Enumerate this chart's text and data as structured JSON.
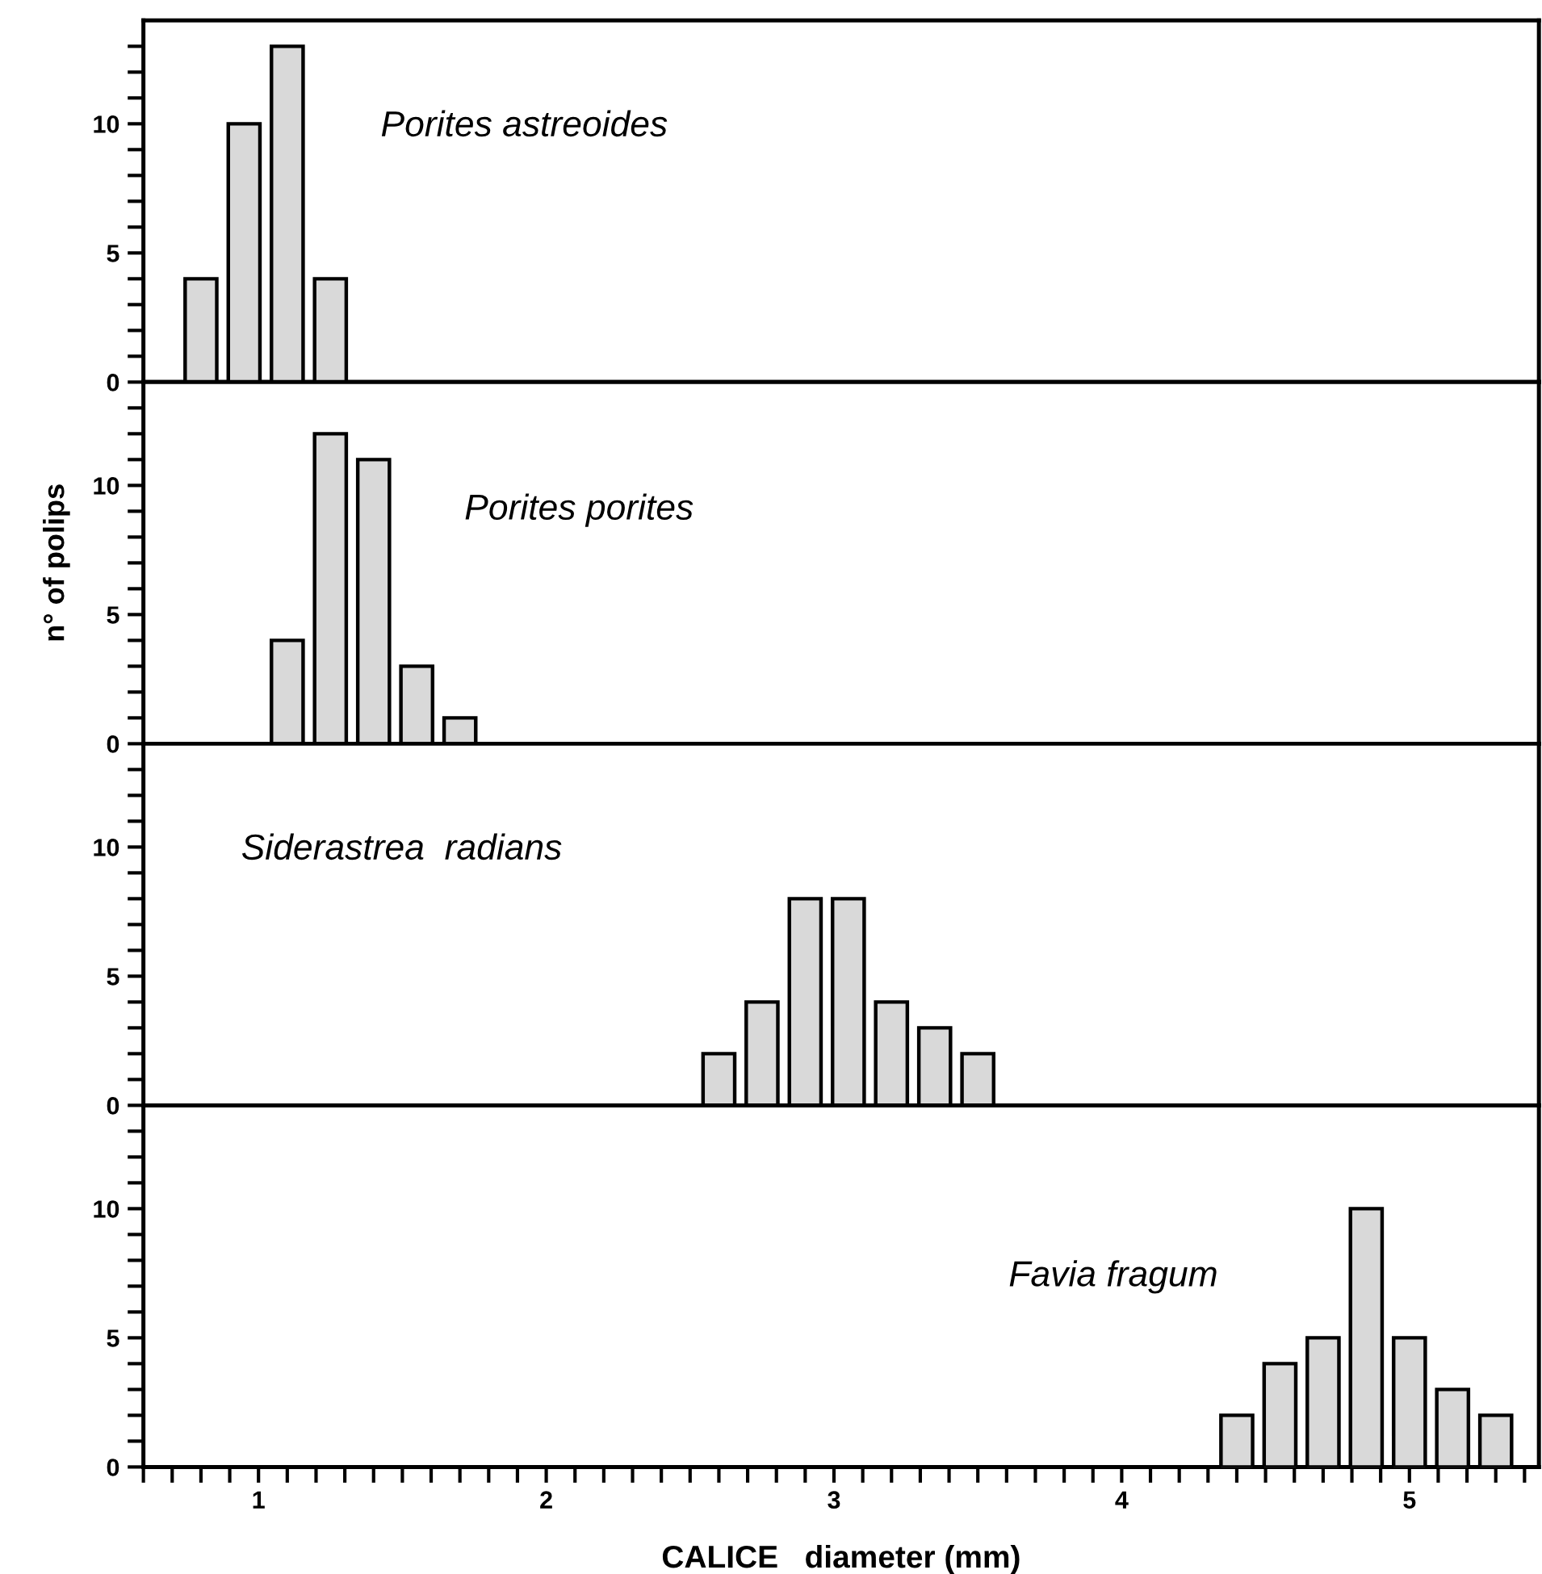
{
  "chart_data": [
    {
      "type": "bar",
      "annotations": [
        "Porites astreoides"
      ],
      "x": [
        0.8,
        0.95,
        1.1,
        1.25
      ],
      "values": [
        4,
        10,
        13,
        4
      ],
      "color": "#d9d9d9",
      "xlim": [
        0.6,
        5.45
      ],
      "ylim": [
        0,
        14
      ],
      "yticks": [
        0,
        {
          "value": 1,
          "label": null
        },
        {
          "value": 2,
          "label": null
        },
        {
          "value": 3,
          "label": null
        },
        {
          "value": 4,
          "label": null
        },
        5,
        {
          "value": 6,
          "label": null
        },
        {
          "value": 7,
          "label": null
        },
        {
          "value": 8,
          "label": null
        },
        {
          "value": 9,
          "label": null
        },
        10,
        {
          "value": 11,
          "label": null
        },
        {
          "value": 12,
          "label": null
        },
        {
          "value": 13,
          "label": null
        }
      ],
      "tick_labels": "y",
      "grid": false,
      "legend": false
    },
    {
      "type": "bar",
      "annotations": [
        "Porites porites"
      ],
      "ylabel": "n° of polips",
      "x": [
        1.1,
        1.25,
        1.4,
        1.55,
        1.7
      ],
      "values": [
        4,
        12,
        11,
        3,
        1
      ],
      "color": "#d9d9d9",
      "xlim": [
        0.6,
        5.45
      ],
      "ylim": [
        0,
        14
      ],
      "yticks": [
        0,
        {
          "value": 1,
          "label": null
        },
        {
          "value": 2,
          "label": null
        },
        {
          "value": 3,
          "label": null
        },
        {
          "value": 4,
          "label": null
        },
        5,
        {
          "value": 6,
          "label": null
        },
        {
          "value": 7,
          "label": null
        },
        {
          "value": 8,
          "label": null
        },
        {
          "value": 9,
          "label": null
        },
        10,
        {
          "value": 11,
          "label": null
        },
        {
          "value": 12,
          "label": null
        },
        {
          "value": 13,
          "label": null
        }
      ],
      "tick_labels": "y",
      "grid": false,
      "legend": false
    },
    {
      "type": "bar",
      "annotations": [
        "Siderastrea  radians"
      ],
      "x": [
        2.6,
        2.75,
        2.9,
        3.05,
        3.2,
        3.35,
        3.5
      ],
      "values": [
        2,
        4,
        8,
        8,
        4,
        3,
        2
      ],
      "color": "#d9d9d9",
      "xlim": [
        0.6,
        5.45
      ],
      "ylim": [
        0,
        14
      ],
      "yticks": [
        0,
        {
          "value": 1,
          "label": null
        },
        {
          "value": 2,
          "label": null
        },
        {
          "value": 3,
          "label": null
        },
        {
          "value": 4,
          "label": null
        },
        5,
        {
          "value": 6,
          "label": null
        },
        {
          "value": 7,
          "label": null
        },
        {
          "value": 8,
          "label": null
        },
        {
          "value": 9,
          "label": null
        },
        10,
        {
          "value": 11,
          "label": null
        },
        {
          "value": 12,
          "label": null
        },
        {
          "value": 13,
          "label": null
        }
      ],
      "tick_labels": "y",
      "grid": false,
      "legend": false
    },
    {
      "type": "bar",
      "annotations": [
        "Favia fragum"
      ],
      "xlabel": "CALICE   diameter (mm)",
      "x": [
        4.4,
        4.55,
        4.7,
        4.85,
        5.0,
        5.15,
        5.3
      ],
      "values": [
        2,
        4,
        5,
        10,
        5,
        3,
        2
      ],
      "color": "#d9d9d9",
      "xlim": [
        0.6,
        5.45
      ],
      "ylim": [
        0,
        14
      ],
      "yticks": [
        0,
        {
          "value": 1,
          "label": null
        },
        {
          "value": 2,
          "label": null
        },
        {
          "value": 3,
          "label": null
        },
        {
          "value": 4,
          "label": null
        },
        5,
        {
          "value": 6,
          "label": null
        },
        {
          "value": 7,
          "label": null
        },
        {
          "value": 8,
          "label": null
        },
        {
          "value": 9,
          "label": null
        },
        10,
        {
          "value": 11,
          "label": null
        },
        {
          "value": 12,
          "label": null
        },
        {
          "value": 13,
          "label": null
        }
      ],
      "xticks": [
        {
          "value": 0.6,
          "label": null
        },
        {
          "value": 0.7,
          "label": null
        },
        {
          "value": 0.8,
          "label": null
        },
        {
          "value": 0.9,
          "label": null
        },
        1,
        {
          "value": 1.1,
          "label": null
        },
        {
          "value": 1.2,
          "label": null
        },
        {
          "value": 1.3,
          "label": null
        },
        {
          "value": 1.4,
          "label": null
        },
        {
          "value": 1.5,
          "label": null
        },
        {
          "value": 1.6,
          "label": null
        },
        {
          "value": 1.7,
          "label": null
        },
        {
          "value": 1.8,
          "label": null
        },
        {
          "value": 1.9,
          "label": null
        },
        2,
        {
          "value": 2.1,
          "label": null
        },
        {
          "value": 2.2,
          "label": null
        },
        {
          "value": 2.3,
          "label": null
        },
        {
          "value": 2.4,
          "label": null
        },
        {
          "value": 2.5,
          "label": null
        },
        {
          "value": 2.6,
          "label": null
        },
        {
          "value": 2.7,
          "label": null
        },
        {
          "value": 2.8,
          "label": null
        },
        {
          "value": 2.9,
          "label": null
        },
        3,
        {
          "value": 3.1,
          "label": null
        },
        {
          "value": 3.2,
          "label": null
        },
        {
          "value": 3.3,
          "label": null
        },
        {
          "value": 3.4,
          "label": null
        },
        {
          "value": 3.5,
          "label": null
        },
        {
          "value": 3.6,
          "label": null
        },
        {
          "value": 3.7,
          "label": null
        },
        {
          "value": 3.8,
          "label": null
        },
        {
          "value": 3.9,
          "label": null
        },
        4,
        {
          "value": 4.1,
          "label": null
        },
        {
          "value": 4.2,
          "label": null
        },
        {
          "value": 4.3,
          "label": null
        },
        {
          "value": 4.4,
          "label": null
        },
        {
          "value": 4.5,
          "label": null
        },
        {
          "value": 4.6,
          "label": null
        },
        {
          "value": 4.7,
          "label": null
        },
        {
          "value": 4.8,
          "label": null
        },
        {
          "value": 4.9,
          "label": null
        },
        5,
        {
          "value": 5.1,
          "label": null
        },
        {
          "value": 5.2,
          "label": null
        },
        {
          "value": 5.3,
          "label": null
        },
        {
          "value": 5.4,
          "label": null
        }
      ],
      "grid": false,
      "legend": false
    }
  ]
}
